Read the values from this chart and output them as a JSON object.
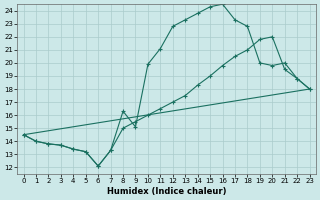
{
  "xlabel": "Humidex (Indice chaleur)",
  "bg_color": "#cce8e8",
  "grid_color": "#aacccc",
  "line_color": "#1a7060",
  "xlim": [
    -0.5,
    23.5
  ],
  "ylim": [
    11.5,
    24.5
  ],
  "xticks": [
    0,
    1,
    2,
    3,
    4,
    5,
    6,
    7,
    8,
    9,
    10,
    11,
    12,
    13,
    14,
    15,
    16,
    17,
    18,
    19,
    20,
    21,
    22,
    23
  ],
  "yticks": [
    12,
    13,
    14,
    15,
    16,
    17,
    18,
    19,
    20,
    21,
    22,
    23,
    24
  ],
  "line1_x": [
    0,
    1,
    2,
    3,
    4,
    5,
    6,
    7,
    8,
    9,
    10,
    11,
    12,
    13,
    14,
    15,
    16,
    17,
    18,
    19,
    20,
    21,
    22,
    23
  ],
  "line1_y": [
    14.5,
    14.0,
    13.8,
    13.7,
    13.4,
    13.2,
    12.1,
    13.3,
    16.3,
    15.1,
    19.9,
    21.1,
    22.8,
    23.3,
    23.8,
    24.3,
    24.5,
    23.3,
    22.8,
    20.0,
    19.8,
    20.0,
    18.8,
    18.0
  ],
  "line2_x": [
    0,
    23
  ],
  "line2_y": [
    14.5,
    18.0
  ],
  "line3_x": [
    0,
    1,
    2,
    3,
    4,
    5,
    6,
    7,
    8,
    9,
    10,
    11,
    12,
    13,
    14,
    15,
    16,
    17,
    18,
    19,
    20,
    21,
    22,
    23
  ],
  "line3_y": [
    14.5,
    14.0,
    13.8,
    13.7,
    13.4,
    13.2,
    12.1,
    13.3,
    15.0,
    15.5,
    16.0,
    16.5,
    17.0,
    17.5,
    18.3,
    19.0,
    19.8,
    20.5,
    21.0,
    21.8,
    22.0,
    19.5,
    18.8,
    18.0
  ]
}
